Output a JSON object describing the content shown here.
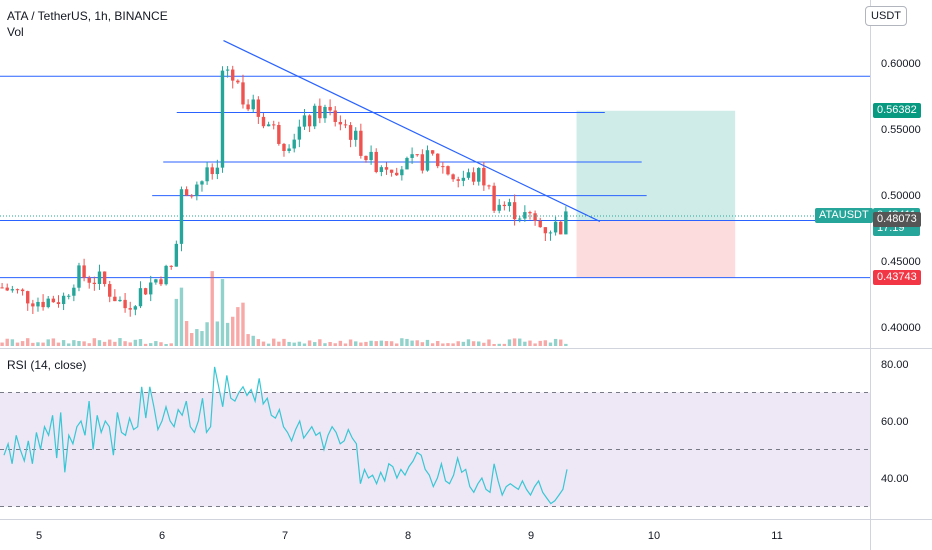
{
  "header": {
    "title": "ATA / TetherUS, 1h, BINANCE",
    "volume_label": "Vol",
    "rsi_label": "RSI (14, close)",
    "currency_button": "USDT"
  },
  "colors": {
    "up": "#26a69a",
    "down": "#ef5350",
    "line": "#2962ff",
    "rsi": "#38c7d4",
    "rsi_band": "#ede7f6",
    "profit_zone": "#d0ece8",
    "loss_zone": "#fcdcdc",
    "price_tag": "#26a69a",
    "target_tag": "#089981",
    "stop_tag": "#f23645",
    "entry_tag": "#555555"
  },
  "price_tags": {
    "target": "0.56382",
    "symbol": "ATAUSDT",
    "current": "0.48411",
    "countdown": "17:19",
    "entry": "0.48073",
    "stop": "0.43743"
  },
  "chart_data": [
    {
      "type": "candlestick",
      "title": "ATA / TetherUS, 1h, BINANCE",
      "y_axis": {
        "ylim": [
          0.385,
          0.63
        ],
        "ticks": [
          "0.60000",
          "0.55000",
          "0.50000",
          "0.45000",
          "0.40000"
        ],
        "tick_values": [
          0.6,
          0.55,
          0.5,
          0.45,
          0.4
        ]
      },
      "x_axis": {
        "ticks": [
          "5",
          "6",
          "7",
          "8",
          "9",
          "10",
          "11"
        ],
        "tick_days": [
          5,
          6,
          7,
          8,
          9,
          10,
          11
        ],
        "xlim": [
          4.68,
          11.68
        ]
      },
      "series": [
        {
          "type": "candles",
          "t_start": 4.7,
          "t_end": 9.29,
          "step_hours": 1,
          "ohlc_path": [
            [
              4.7,
              0.43
            ],
            [
              5.0,
              0.42
            ],
            [
              5.2,
              0.422
            ],
            [
              5.3,
              0.44
            ],
            [
              5.5,
              0.435
            ],
            [
              5.7,
              0.415
            ],
            [
              5.8,
              0.425
            ],
            [
              6.0,
              0.44
            ],
            [
              6.1,
              0.445
            ],
            [
              6.15,
              0.5
            ],
            [
              6.3,
              0.51
            ],
            [
              6.45,
              0.52
            ],
            [
              6.5,
              0.6
            ],
            [
              6.7,
              0.57
            ],
            [
              7.0,
              0.54
            ],
            [
              7.3,
              0.565
            ],
            [
              7.5,
              0.552
            ],
            [
              7.7,
              0.525
            ],
            [
              8.0,
              0.522
            ],
            [
              8.2,
              0.528
            ],
            [
              8.4,
              0.512
            ],
            [
              8.6,
              0.515
            ],
            [
              8.7,
              0.495
            ],
            [
              8.9,
              0.487
            ],
            [
              9.1,
              0.475
            ],
            [
              9.27,
              0.477
            ],
            [
              9.29,
              0.484
            ]
          ]
        },
        {
          "type": "volume",
          "spike_days": [
            6.15,
            6.45,
            6.5,
            6.6
          ]
        }
      ],
      "horizontal_levels": [
        {
          "value": 0.59,
          "extent": "full"
        },
        {
          "value": 0.4807,
          "extent": "full"
        },
        {
          "value": 0.4374,
          "extent": "full"
        },
        {
          "value": 0.5625,
          "from": 6.12,
          "to": 9.6
        },
        {
          "value": 0.525,
          "from": 6.01,
          "to": 9.9
        },
        {
          "value": 0.4995,
          "from": 5.92,
          "to": 9.94
        }
      ],
      "trend_line": {
        "from": [
          6.5,
          0.617
        ],
        "to": [
          9.56,
          0.48
        ]
      },
      "position": {
        "entry": 0.4807,
        "target": 0.56382,
        "stop": 0.43743,
        "from": 9.37,
        "to": 10.66
      }
    },
    {
      "type": "line",
      "title": "RSI (14, close)",
      "ylim": [
        26,
        85
      ],
      "y_ticks": [
        "80.00",
        "60.00",
        "40.00"
      ],
      "y_tick_values": [
        80,
        60,
        40
      ],
      "bands": [
        70,
        50,
        30
      ],
      "series": [
        {
          "values": [
            48,
            52,
            45,
            55,
            50,
            46,
            53,
            45,
            56,
            50,
            58,
            55,
            62,
            47,
            63,
            42,
            55,
            52,
            58,
            60,
            55,
            67,
            50,
            62,
            56,
            60,
            58,
            48,
            63,
            56,
            55,
            61,
            57,
            58,
            72,
            61,
            72,
            65,
            57,
            60,
            65,
            60,
            58,
            64,
            62,
            67,
            58,
            56,
            60,
            68,
            56,
            58,
            79,
            72,
            65,
            76,
            68,
            67,
            70,
            72,
            69,
            71,
            67,
            75,
            66,
            68,
            62,
            61,
            64,
            58,
            56,
            53,
            57,
            60,
            54,
            56,
            58,
            55,
            56,
            50,
            55,
            58,
            56,
            52,
            53,
            57,
            54,
            52,
            38,
            43,
            40,
            41,
            38,
            42,
            39,
            45,
            44,
            40,
            43,
            41,
            44,
            46,
            49,
            48,
            43,
            41,
            37,
            40,
            45,
            39,
            38,
            41,
            47,
            42,
            43,
            37,
            35,
            38,
            40,
            36,
            35,
            45,
            39,
            34,
            37,
            38,
            37,
            36,
            39,
            36,
            34,
            37,
            39,
            35,
            33,
            31,
            32,
            34,
            36,
            43
          ]
        }
      ]
    }
  ]
}
